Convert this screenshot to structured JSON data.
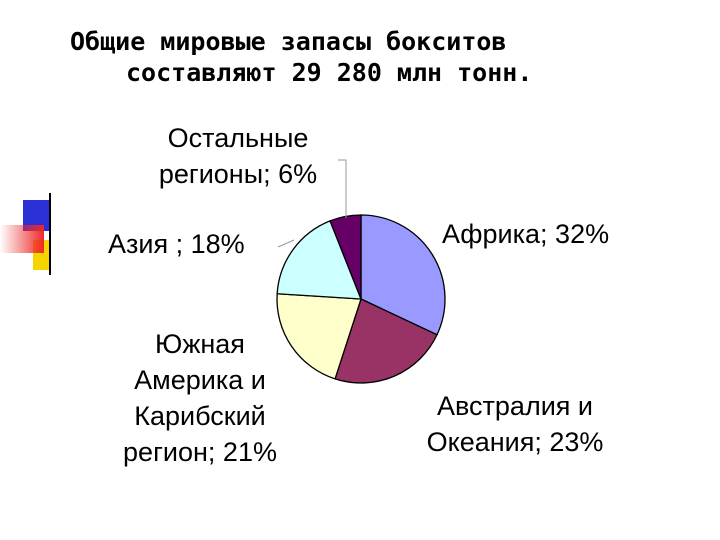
{
  "title": {
    "line1": "Общие мировые запасы бокситов",
    "line2": "составляют 29 280 млн тонн."
  },
  "colors": {
    "deco_blue": "#2a2fd6",
    "deco_yellow": "#f5d400",
    "deco_red": "#ee2a2a"
  },
  "chart_data": {
    "type": "pie",
    "slices": [
      {
        "name": "Африка",
        "value": 32,
        "color": "#9999ff",
        "label_lines": [
          "Африка; 32%"
        ]
      },
      {
        "name": "Австралия и Океания",
        "value": 23,
        "color": "#993366",
        "label_lines": [
          "Австралия и",
          "Океания; 23%"
        ]
      },
      {
        "name": "Южная Америка и Карибский регион",
        "value": 21,
        "color": "#ffffcc",
        "label_lines": [
          "Южная",
          "Америка и",
          "Карибский",
          "регион; 21%"
        ]
      },
      {
        "name": "Азия",
        "value": 18,
        "color": "#ccffff",
        "label_lines": [
          "Азия ; 18%"
        ]
      },
      {
        "name": "Остальные регионы",
        "value": 6,
        "color": "#660066",
        "label_lines": [
          "Остальные",
          "регионы; 6%"
        ]
      }
    ]
  }
}
